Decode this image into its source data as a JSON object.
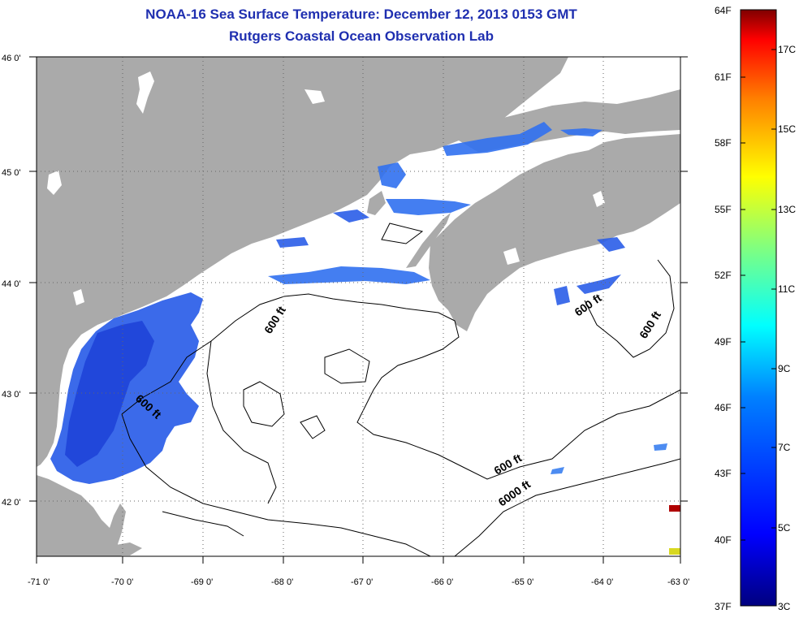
{
  "title": {
    "line1": "NOAA-16 Sea Surface Temperature:  December 12, 2013 0153 GMT",
    "line2": "Rutgers Coastal Ocean Observation Lab"
  },
  "axes": {
    "lat_labels": [
      "46 0'",
      "45 0'",
      "44 0'",
      "43 0'",
      "42 0'"
    ],
    "lon_labels": [
      "-71 0'",
      "-70 0'",
      "-69 0'",
      "-68 0'",
      "-67 0'",
      "-66 0'",
      "-65 0'",
      "-64 0'",
      "-63 0'"
    ]
  },
  "isobaths": [
    {
      "text": "600 ft"
    },
    {
      "text": "600 ft"
    },
    {
      "text": "600 ft"
    },
    {
      "text": "600 ft"
    },
    {
      "text": "600 ft"
    },
    {
      "text": "6000 ft"
    }
  ],
  "colorbar": {
    "f_labels": [
      "64F",
      "61F",
      "58F",
      "55F",
      "52F",
      "49F",
      "46F",
      "43F",
      "40F",
      "37F"
    ],
    "c_labels": [
      "17C",
      "15C",
      "13C",
      "11C",
      "9C",
      "7C",
      "5C",
      "3C"
    ],
    "range_f": [
      37,
      64
    ],
    "range_c": [
      3,
      18
    ]
  },
  "colors": {
    "land": "#aaaaaa",
    "water": "#ffffff",
    "title": "#1f2fb0"
  }
}
